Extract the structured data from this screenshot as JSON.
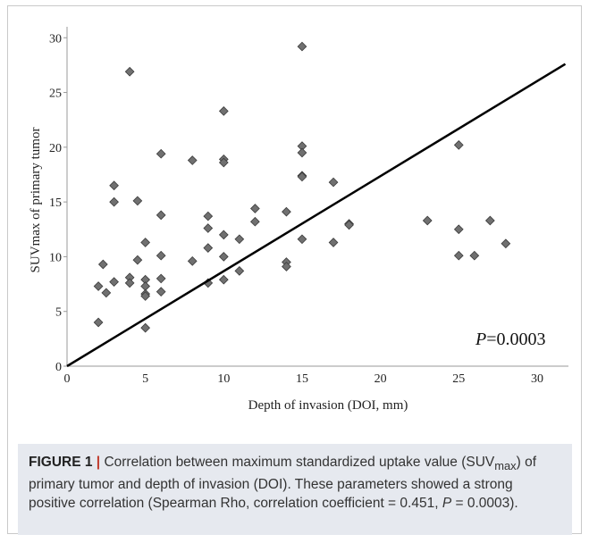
{
  "chart_data": {
    "type": "scatter",
    "title": "",
    "xlabel": "Depth of invasion (DOI, mm)",
    "ylabel": "SUVmax of primary tumor",
    "xlim": [
      0,
      32
    ],
    "ylim": [
      0,
      31
    ],
    "x_ticks": [
      0,
      5,
      10,
      15,
      20,
      25,
      30
    ],
    "y_ticks": [
      0,
      5,
      10,
      15,
      20,
      25,
      30
    ],
    "grid": false,
    "annotation": {
      "prefix": "P",
      "value": "=0.0003"
    },
    "trendline": {
      "x": [
        0,
        31.8
      ],
      "y": [
        0,
        27.6
      ]
    },
    "marker_color": "#707070",
    "points": [
      {
        "x": 2,
        "y": 7.3
      },
      {
        "x": 2,
        "y": 4.0
      },
      {
        "x": 2.3,
        "y": 9.3
      },
      {
        "x": 2.5,
        "y": 6.7
      },
      {
        "x": 3,
        "y": 16.5
      },
      {
        "x": 3,
        "y": 15.0
      },
      {
        "x": 3,
        "y": 7.7
      },
      {
        "x": 4,
        "y": 26.9
      },
      {
        "x": 4,
        "y": 8.1
      },
      {
        "x": 4,
        "y": 7.6
      },
      {
        "x": 4.5,
        "y": 15.1
      },
      {
        "x": 4.5,
        "y": 9.7
      },
      {
        "x": 5,
        "y": 11.3
      },
      {
        "x": 5,
        "y": 7.9
      },
      {
        "x": 5,
        "y": 7.3
      },
      {
        "x": 5,
        "y": 6.6
      },
      {
        "x": 5,
        "y": 6.4
      },
      {
        "x": 5,
        "y": 3.5
      },
      {
        "x": 6,
        "y": 19.4
      },
      {
        "x": 6,
        "y": 13.8
      },
      {
        "x": 6,
        "y": 10.1
      },
      {
        "x": 6,
        "y": 8.0
      },
      {
        "x": 6,
        "y": 6.8
      },
      {
        "x": 8,
        "y": 18.8
      },
      {
        "x": 8,
        "y": 9.6
      },
      {
        "x": 9,
        "y": 13.7
      },
      {
        "x": 9,
        "y": 12.6
      },
      {
        "x": 9,
        "y": 10.8
      },
      {
        "x": 9,
        "y": 7.6
      },
      {
        "x": 10,
        "y": 23.3
      },
      {
        "x": 10,
        "y": 18.9
      },
      {
        "x": 10,
        "y": 18.6
      },
      {
        "x": 10,
        "y": 12.0
      },
      {
        "x": 10,
        "y": 10.0
      },
      {
        "x": 10,
        "y": 7.9
      },
      {
        "x": 11,
        "y": 11.6
      },
      {
        "x": 11,
        "y": 8.7
      },
      {
        "x": 12,
        "y": 14.4
      },
      {
        "x": 12,
        "y": 13.2
      },
      {
        "x": 14,
        "y": 14.1
      },
      {
        "x": 14,
        "y": 9.5
      },
      {
        "x": 14,
        "y": 9.1
      },
      {
        "x": 15,
        "y": 29.2
      },
      {
        "x": 15,
        "y": 20.1
      },
      {
        "x": 15,
        "y": 19.5
      },
      {
        "x": 15,
        "y": 17.4
      },
      {
        "x": 15,
        "y": 17.3
      },
      {
        "x": 15,
        "y": 11.6
      },
      {
        "x": 17,
        "y": 16.8
      },
      {
        "x": 17,
        "y": 11.3
      },
      {
        "x": 18,
        "y": 13.0
      },
      {
        "x": 18,
        "y": 12.9
      },
      {
        "x": 23,
        "y": 13.3
      },
      {
        "x": 25,
        "y": 20.2
      },
      {
        "x": 25,
        "y": 12.5
      },
      {
        "x": 25,
        "y": 10.1
      },
      {
        "x": 26,
        "y": 10.1
      },
      {
        "x": 27,
        "y": 13.3
      },
      {
        "x": 28,
        "y": 11.2
      }
    ]
  },
  "caption": {
    "label": "FIGURE 1",
    "separator": "|",
    "text_1": " Correlation between maximum standardized uptake value (SUV",
    "sub_1": "max",
    "text_2": ") of primary tumor and depth of invasion (DOI). These parameters showed a strong positive correlation (Spearman Rho, correlation coefficient = 0.451, ",
    "p_symbol": "P",
    "text_3": " = 0.0003)."
  }
}
